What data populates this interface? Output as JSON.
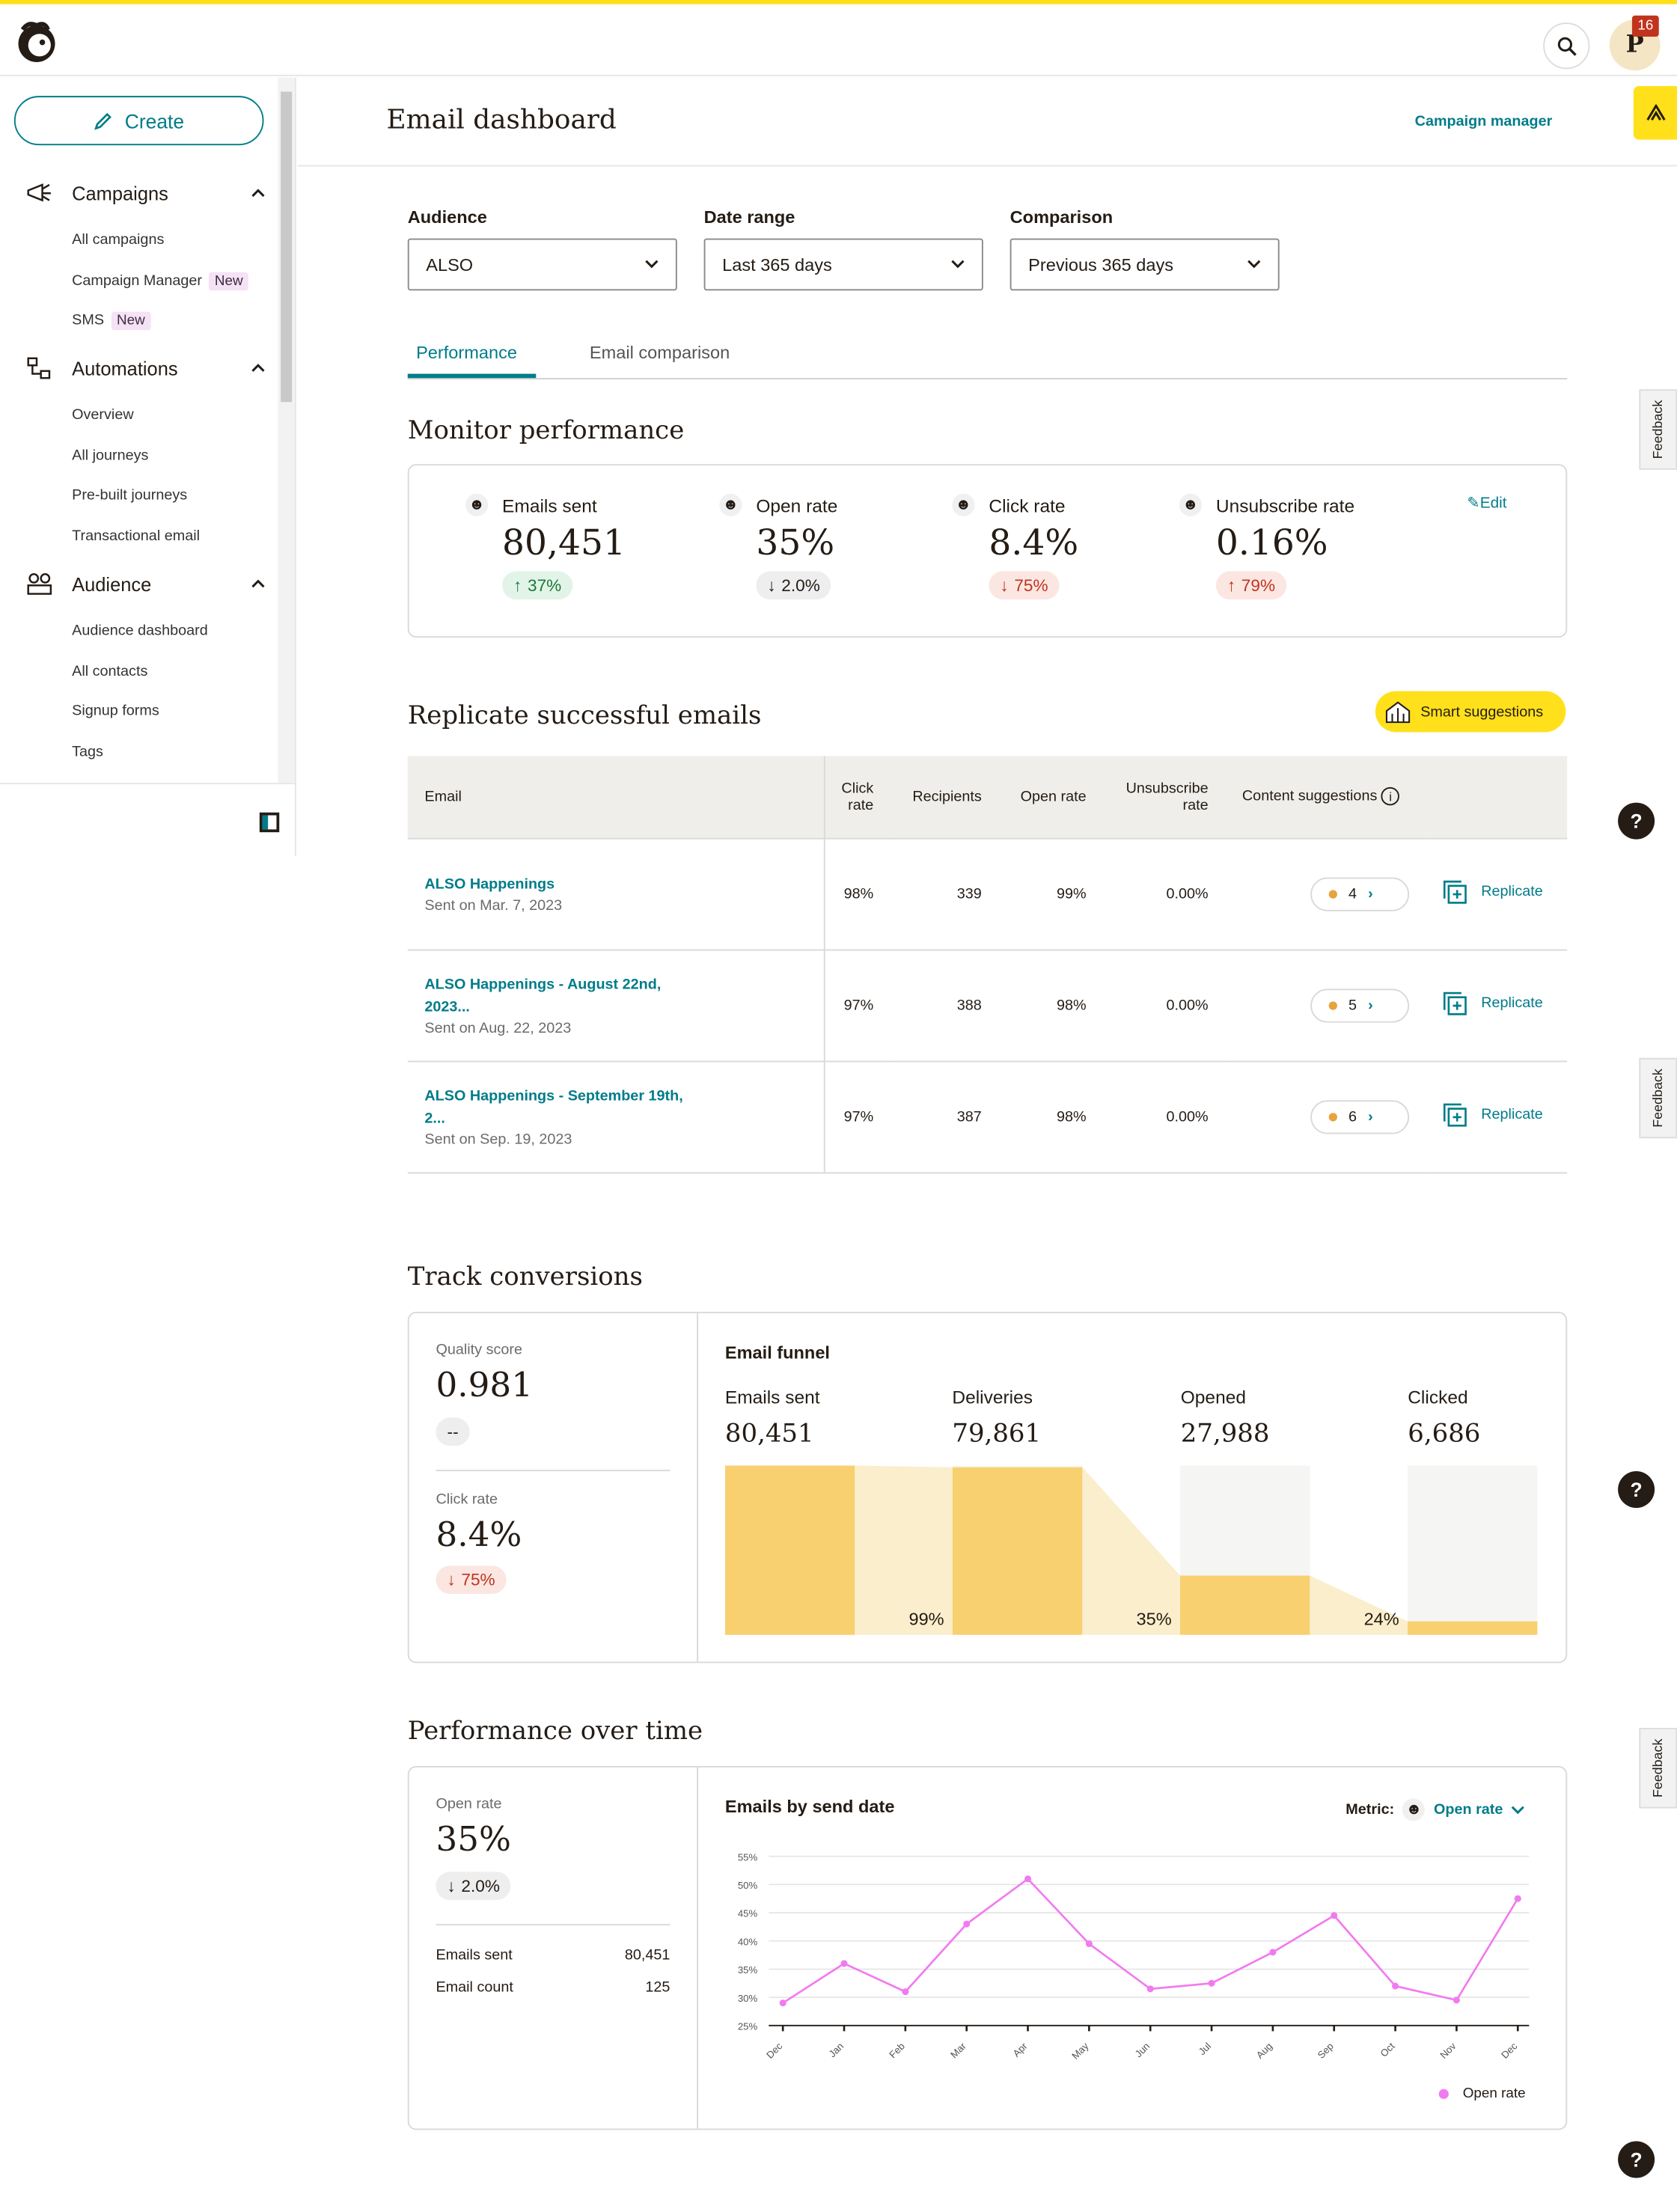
{
  "topbar": {
    "notification_count": "16",
    "avatar_initial": "P"
  },
  "sidebar": {
    "create_label": "Create",
    "sections": [
      {
        "label": "Campaigns",
        "items": [
          "All campaigns",
          "Campaign Manager",
          "SMS"
        ]
      },
      {
        "label": "Automations",
        "items": [
          "Overview",
          "All journeys",
          "Pre-built journeys",
          "Transactional email"
        ]
      },
      {
        "label": "Audience",
        "items": [
          "Audience dashboard",
          "All contacts",
          "Signup forms",
          "Tags"
        ]
      }
    ],
    "new_badge": "New"
  },
  "header": {
    "title": "Email dashboard",
    "campaign_manager": "Campaign manager"
  },
  "filters": {
    "audience_label": "Audience",
    "audience_value": "ALSO",
    "date_label": "Date range",
    "date_value": "Last 365 days",
    "comparison_label": "Comparison",
    "comparison_value": "Previous 365 days"
  },
  "tabs": [
    "Performance",
    "Email comparison"
  ],
  "monitor": {
    "title": "Monitor performance",
    "edit": "Edit",
    "metrics": [
      {
        "label": "Emails sent",
        "value": "80,451",
        "change": "37%",
        "dir": "up"
      },
      {
        "label": "Open rate",
        "value": "35%",
        "change": "2.0%",
        "dir": "neutral"
      },
      {
        "label": "Click rate",
        "value": "8.4%",
        "change": "75%",
        "dir": "down"
      },
      {
        "label": "Unsubscribe rate",
        "value": "0.16%",
        "change": "79%",
        "dir": "down-up"
      }
    ]
  },
  "replicate": {
    "title": "Replicate successful emails",
    "smart_suggestions": "Smart suggestions",
    "columns": [
      "Email",
      "Click rate",
      "Recipients",
      "Open rate",
      "Unsubscribe rate",
      "Content suggestions"
    ],
    "unsub_col_line1": "Unsubscribe",
    "unsub_col_line2": "rate",
    "replicate_label": "Replicate",
    "rows": [
      {
        "name": "ALSO Happenings",
        "name2": "",
        "date": "Sent on Mar. 7, 2023",
        "click": "98%",
        "recipients": "339",
        "open": "99%",
        "unsub": "0.00%",
        "suggestions": "4"
      },
      {
        "name": "ALSO Happenings - August 22nd,",
        "name2": "2023...",
        "date": "Sent on Aug. 22, 2023",
        "click": "97%",
        "recipients": "388",
        "open": "98%",
        "unsub": "0.00%",
        "suggestions": "5"
      },
      {
        "name": "ALSO Happenings - September 19th,",
        "name2": "2...",
        "date": "Sent on Sep. 19, 2023",
        "click": "97%",
        "recipients": "387",
        "open": "98%",
        "unsub": "0.00%",
        "suggestions": "6"
      }
    ]
  },
  "conversions": {
    "title": "Track conversions",
    "quality_label": "Quality score",
    "quality_value": "0.981",
    "quality_change": "--",
    "click_label": "Click rate",
    "click_value": "8.4%",
    "click_change": "75%",
    "funnel_title": "Email funnel",
    "funnel": [
      {
        "label": "Emails sent",
        "value": "80,451",
        "fill": 1.0
      },
      {
        "label": "Deliveries",
        "value": "79,861",
        "fill": 0.99
      },
      {
        "label": "Opened",
        "value": "27,988",
        "fill": 0.35
      },
      {
        "label": "Clicked",
        "value": "6,686",
        "fill": 0.08
      }
    ],
    "funnel_pcts": [
      "99%",
      "35%",
      "24%"
    ]
  },
  "over_time": {
    "title": "Performance over time",
    "open_label": "Open rate",
    "open_value": "35%",
    "open_change": "2.0%",
    "emails_sent_label": "Emails sent",
    "emails_sent_value": "80,451",
    "email_count_label": "Email count",
    "email_count_value": "125",
    "chart_title": "Emails by send date",
    "metric_label": "Metric:",
    "metric_value": "Open rate",
    "legend": "Open rate"
  },
  "feedback_label": "Feedback",
  "help_label": "?",
  "colors": {
    "accent": "#007c89",
    "yellow": "#ffe01b",
    "funnel_dark": "#f8d070",
    "funnel_light": "#fbeecd",
    "line": "#f27af0"
  },
  "chart_data": {
    "type": "line",
    "title": "Emails by send date",
    "x": [
      "Dec",
      "Jan",
      "Feb",
      "Mar",
      "Apr",
      "May",
      "Jun",
      "Jul",
      "Aug",
      "Sep",
      "Oct",
      "Nov",
      "Dec"
    ],
    "series": [
      {
        "name": "Open rate",
        "values": [
          29,
          36,
          31,
          43,
          51,
          39.5,
          31.5,
          32.5,
          38,
          44.5,
          32,
          29.5,
          47.5
        ]
      }
    ],
    "yticks": [
      "25%",
      "30%",
      "35%",
      "40%",
      "45%",
      "50%",
      "55%"
    ],
    "ylim": [
      25,
      55
    ],
    "grid": true,
    "legend": "bottom-right"
  }
}
